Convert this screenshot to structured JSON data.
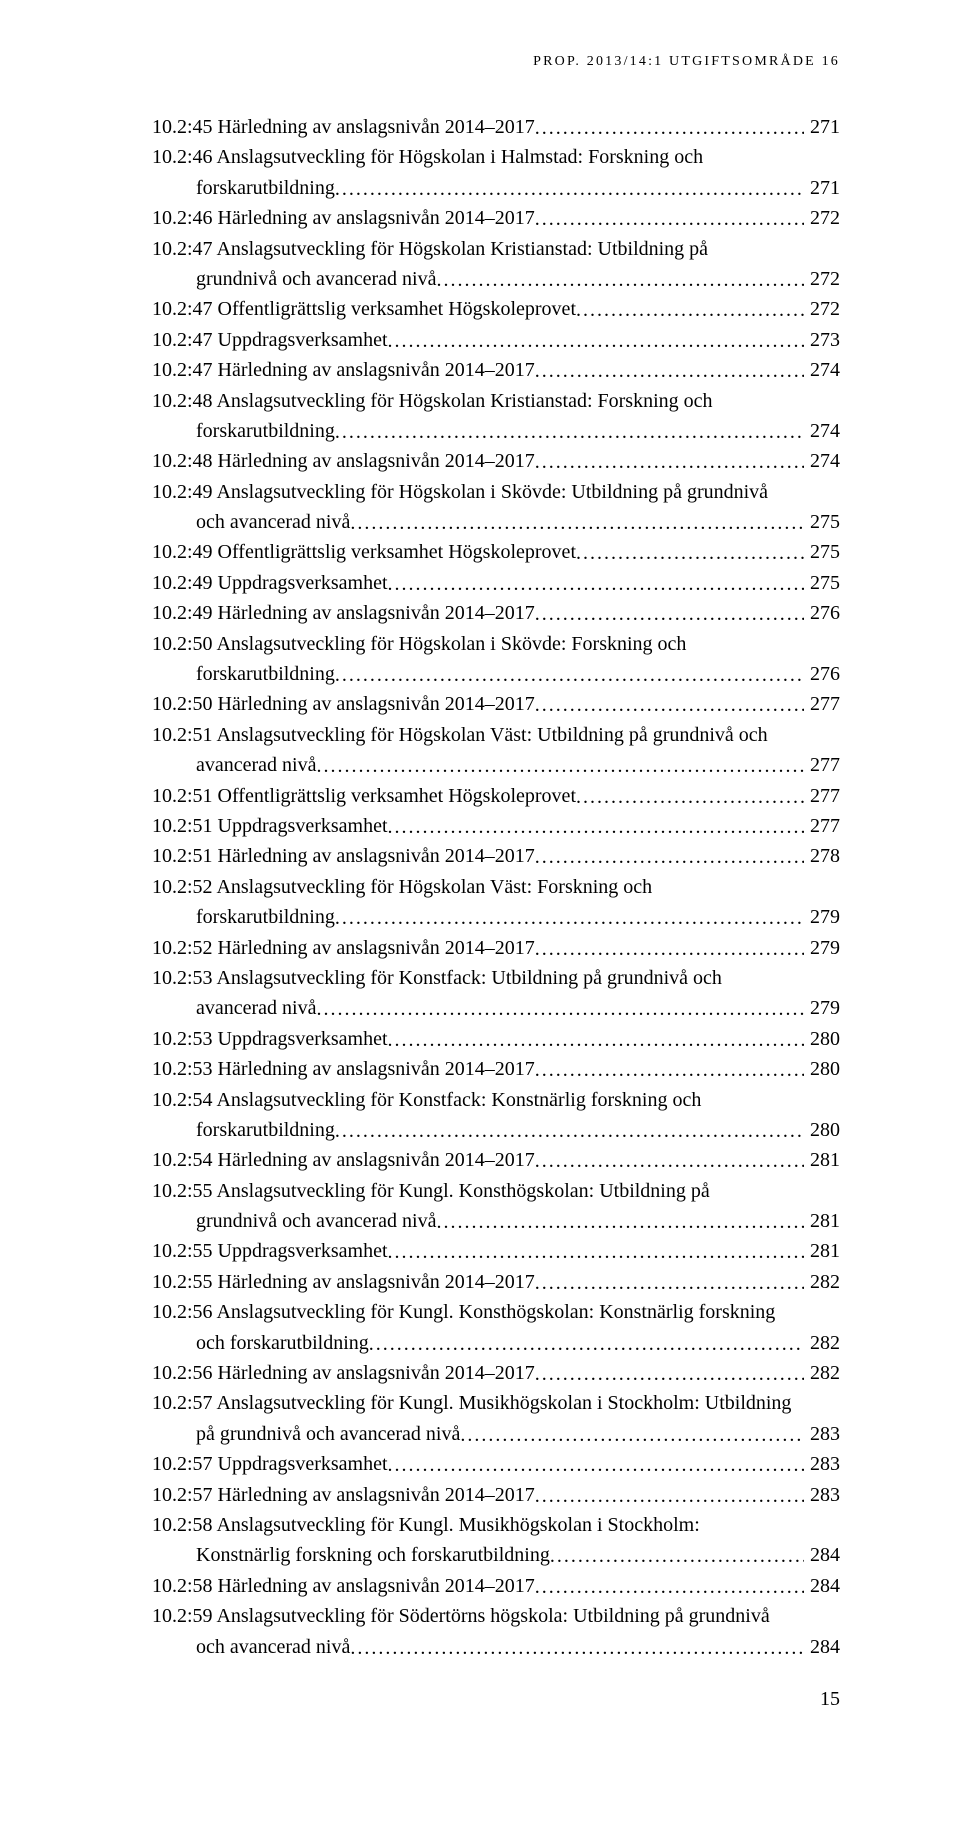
{
  "running_head": "PROP. 2013/14:1 UTGIFTSOMRÅDE 16",
  "page_number": "15",
  "entries": [
    {
      "lines": [
        "10.2:45 Härledning av anslagsnivån 2014–2017"
      ],
      "page": "271"
    },
    {
      "lines": [
        "10.2:46 Anslagsutveckling för Högskolan i Halmstad: Forskning och",
        "forskarutbildning"
      ],
      "page": "271"
    },
    {
      "lines": [
        "10.2:46 Härledning av anslagsnivån 2014–2017"
      ],
      "page": "272"
    },
    {
      "lines": [
        "10.2:47 Anslagsutveckling för Högskolan Kristianstad: Utbildning på",
        "grundnivå och avancerad nivå"
      ],
      "page": "272"
    },
    {
      "lines": [
        "10.2:47 Offentligrättslig verksamhet Högskoleprovet"
      ],
      "page": "272"
    },
    {
      "lines": [
        "10.2:47 Uppdragsverksamhet"
      ],
      "page": "273"
    },
    {
      "lines": [
        "10.2:47 Härledning av anslagsnivån 2014–2017"
      ],
      "page": "274"
    },
    {
      "lines": [
        "10.2:48 Anslagsutveckling för Högskolan Kristianstad: Forskning och",
        "forskarutbildning"
      ],
      "page": "274"
    },
    {
      "lines": [
        "10.2:48 Härledning av anslagsnivån 2014–2017"
      ],
      "page": "274"
    },
    {
      "lines": [
        "10.2:49 Anslagsutveckling för Högskolan i Skövde: Utbildning på grundnivå",
        "och avancerad nivå"
      ],
      "page": "275"
    },
    {
      "lines": [
        "10.2:49 Offentligrättslig verksamhet Högskoleprovet"
      ],
      "page": "275"
    },
    {
      "lines": [
        "10.2:49 Uppdragsverksamhet"
      ],
      "page": "275"
    },
    {
      "lines": [
        "10.2:49 Härledning av anslagsnivån 2014–2017"
      ],
      "page": "276"
    },
    {
      "lines": [
        "10.2:50 Anslagsutveckling för Högskolan i Skövde: Forskning och",
        "forskarutbildning"
      ],
      "page": "276"
    },
    {
      "lines": [
        "10.2:50 Härledning av anslagsnivån 2014–2017"
      ],
      "page": "277"
    },
    {
      "lines": [
        "10.2:51 Anslagsutveckling för Högskolan Väst: Utbildning på grundnivå och",
        "avancerad nivå"
      ],
      "page": "277"
    },
    {
      "lines": [
        "10.2:51 Offentligrättslig verksamhet Högskoleprovet"
      ],
      "page": "277"
    },
    {
      "lines": [
        "10.2:51 Uppdragsverksamhet"
      ],
      "page": "277"
    },
    {
      "lines": [
        "10.2:51 Härledning av anslagsnivån 2014–2017"
      ],
      "page": "278"
    },
    {
      "lines": [
        "10.2:52 Anslagsutveckling för Högskolan Väst: Forskning och",
        "forskarutbildning"
      ],
      "page": "279"
    },
    {
      "lines": [
        "10.2:52 Härledning av anslagsnivån 2014–2017"
      ],
      "page": "279"
    },
    {
      "lines": [
        "10.2:53 Anslagsutveckling för Konstfack: Utbildning på grundnivå och",
        "avancerad nivå"
      ],
      "page": "279"
    },
    {
      "lines": [
        "10.2:53 Uppdragsverksamhet"
      ],
      "page": "280"
    },
    {
      "lines": [
        "10.2:53 Härledning av anslagsnivån 2014–2017"
      ],
      "page": "280"
    },
    {
      "lines": [
        "10.2:54 Anslagsutveckling för Konstfack: Konstnärlig forskning och",
        "forskarutbildning"
      ],
      "page": "280"
    },
    {
      "lines": [
        "10.2:54 Härledning av anslagsnivån 2014–2017"
      ],
      "page": "281"
    },
    {
      "lines": [
        "10.2:55 Anslagsutveckling för Kungl. Konsthögskolan: Utbildning på",
        "grundnivå och avancerad nivå"
      ],
      "page": "281"
    },
    {
      "lines": [
        "10.2:55 Uppdragsverksamhet"
      ],
      "page": "281"
    },
    {
      "lines": [
        "10.2:55 Härledning av anslagsnivån 2014–2017"
      ],
      "page": "282"
    },
    {
      "lines": [
        "10.2:56 Anslagsutveckling för Kungl. Konsthögskolan: Konstnärlig forskning",
        "och forskarutbildning"
      ],
      "page": "282"
    },
    {
      "lines": [
        "10.2:56 Härledning av anslagsnivån 2014–2017"
      ],
      "page": "282"
    },
    {
      "lines": [
        "10.2:57 Anslagsutveckling för Kungl. Musikhögskolan i Stockholm: Utbildning",
        "på grundnivå och avancerad nivå"
      ],
      "page": "283"
    },
    {
      "lines": [
        "10.2:57 Uppdragsverksamhet"
      ],
      "page": "283"
    },
    {
      "lines": [
        "10.2:57 Härledning av anslagsnivån 2014–2017"
      ],
      "page": "283"
    },
    {
      "lines": [
        "10.2:58 Anslagsutveckling för Kungl. Musikhögskolan i Stockholm:",
        "Konstnärlig forskning och forskarutbildning"
      ],
      "page": "284"
    },
    {
      "lines": [
        "10.2:58 Härledning av anslagsnivån 2014–2017"
      ],
      "page": "284"
    },
    {
      "lines": [
        "10.2:59 Anslagsutveckling för Södertörns högskola: Utbildning på grundnivå",
        "och avancerad nivå"
      ],
      "page": "284"
    }
  ]
}
